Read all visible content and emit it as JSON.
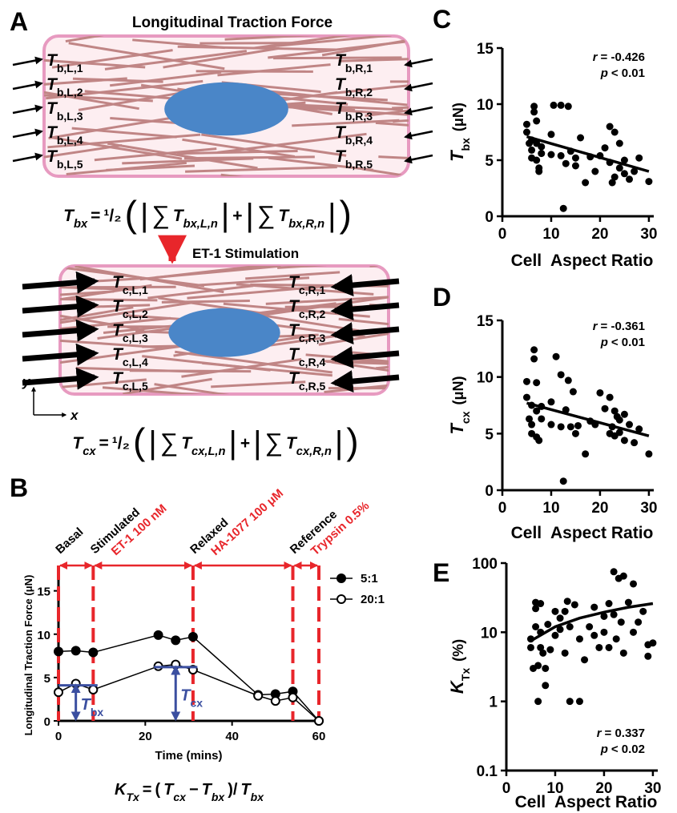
{
  "diagram": {
    "panel": "A",
    "title": "Longitudinal Traction Force",
    "basal_cell": {
      "left_labels": [
        {
          "symbol": "T",
          "subscript": "b,L,1"
        },
        {
          "symbol": "T",
          "subscript": "b,L,2"
        },
        {
          "symbol": "T",
          "subscript": "b,L,3"
        },
        {
          "symbol": "T",
          "subscript": "b,L,4"
        },
        {
          "symbol": "T",
          "subscript": "b,L,5"
        }
      ],
      "right_labels": [
        {
          "symbol": "T",
          "subscript": "b,R,1"
        },
        {
          "symbol": "T",
          "subscript": "b,R,2"
        },
        {
          "symbol": "T",
          "subscript": "b,R,3"
        },
        {
          "symbol": "T",
          "subscript": "b,R,4"
        },
        {
          "symbol": "T",
          "subscript": "b,R,5"
        }
      ]
    },
    "equation_basal": [
      {
        "text": "T",
        "sub": "bx"
      },
      {
        "text": "="
      },
      {
        "text": "¹/₂"
      },
      {
        "text": "("
      },
      {
        "text": "|"
      },
      {
        "text": "∑"
      },
      {
        "text": "T",
        "sub": "bx,L,n"
      },
      {
        "text": "|"
      },
      {
        "text": "+"
      },
      {
        "text": "|"
      },
      {
        "text": "∑"
      },
      {
        "text": "T",
        "sub": "bx,R,n"
      },
      {
        "text": "|"
      },
      {
        "text": ")"
      }
    ],
    "stimulation": "ET-1 Stimulation",
    "stimulated_cell": {
      "left_labels": [
        {
          "symbol": "T",
          "subscript": "c,L,1"
        },
        {
          "symbol": "T",
          "subscript": "c,L,2"
        },
        {
          "symbol": "T",
          "subscript": "c,L,3"
        },
        {
          "symbol": "T",
          "subscript": "c,L,4"
        },
        {
          "symbol": "T",
          "subscript": "c,L,5"
        }
      ],
      "right_labels": [
        {
          "symbol": "T",
          "subscript": "c,R,1"
        },
        {
          "symbol": "T",
          "subscript": "c,R,2"
        },
        {
          "symbol": "T",
          "subscript": "c,R,3"
        },
        {
          "symbol": "T",
          "subscript": "c,R,4"
        },
        {
          "symbol": "T",
          "subscript": "c,R,5"
        }
      ]
    },
    "axes": {
      "y": "y",
      "x": "x"
    },
    "equation_stimulated": [
      {
        "text": "T",
        "sub": "cx"
      },
      {
        "text": "="
      },
      {
        "text": "¹/₂"
      },
      {
        "text": "("
      },
      {
        "text": "|"
      },
      {
        "text": "∑"
      },
      {
        "text": "T",
        "sub": "cx,L,n"
      },
      {
        "text": "|"
      },
      {
        "text": "+"
      },
      {
        "text": "|"
      },
      {
        "text": "∑"
      },
      {
        "text": "T",
        "sub": "cx,R,n"
      },
      {
        "text": "|"
      },
      {
        "text": ")"
      }
    ]
  },
  "chart_data": [
    {
      "type": "line",
      "panel": "B",
      "xlabel": "Time (mins)",
      "ylabel": "Longitudinal Traction Force (μN)",
      "x": [
        0,
        4,
        8,
        23,
        27,
        31,
        46,
        50,
        54,
        60
      ],
      "series": [
        {
          "name": "5:1",
          "color": "#000000",
          "marker": "filled",
          "values": [
            8,
            8.1,
            7.9,
            9.9,
            9.3,
            9.7,
            3.0,
            3.1,
            3.4,
            0
          ]
        },
        {
          "name": "20:1",
          "color": "#000000",
          "marker": "open",
          "values": [
            3.3,
            4.3,
            3.6,
            6.3,
            6.5,
            5.9,
            2.9,
            2.3,
            2.7,
            0
          ]
        }
      ],
      "xlim": [
        0,
        60
      ],
      "xticks": [
        0,
        20,
        40,
        60
      ],
      "ylim": [
        0,
        17
      ],
      "yticks": [
        0,
        5,
        10,
        15
      ],
      "legend": "upper right",
      "phases": [
        {
          "name": "Basal"
        },
        {
          "name": "Stimulated",
          "treatment": "ET-1 100 nM"
        },
        {
          "name": "Relaxed",
          "treatment": "HA-1077 100 μM"
        },
        {
          "name": "Reference",
          "treatment": "Trypsin 0.5%"
        }
      ],
      "phase_boundaries": [
        0,
        8,
        31,
        54,
        60
      ],
      "phase_color": "#e8262b",
      "annotations": [
        {
          "symbol": "T",
          "subscript": "bx",
          "y": 4.1,
          "x_from": 0,
          "x_to": 9,
          "arrow_x": 4
        },
        {
          "symbol": "T",
          "subscript": "cx",
          "y": 6.2,
          "x_from": 22,
          "x_to": 32,
          "arrow_x": 27
        }
      ],
      "annotation_color": "#3b4fa0",
      "equation": [
        {
          "text": "K",
          "sub": "Tx"
        },
        {
          "text": "="
        },
        {
          "text": "("
        },
        {
          "text": "T",
          "sub": "cx"
        },
        {
          "text": "−"
        },
        {
          "text": "T",
          "sub": "bx"
        },
        {
          "text": ")/"
        },
        {
          "text": "T",
          "sub": "bx"
        }
      ]
    },
    {
      "type": "scatter",
      "panel": "C",
      "xlabel": "Cell  Aspect Ratio",
      "ylabel": {
        "symbol": "T",
        "subscript": "bx",
        "unit": "(μN)"
      },
      "x": [
        5,
        5,
        5.5,
        6,
        6,
        6,
        6.5,
        6.5,
        7,
        7,
        7,
        7.5,
        7.5,
        8,
        8,
        10,
        10,
        10.5,
        12,
        12,
        12.5,
        13,
        13.5,
        14,
        15,
        15,
        16,
        17,
        18,
        19,
        20,
        21,
        22,
        22,
        22.5,
        23,
        23,
        24,
        24,
        25,
        25,
        26,
        27,
        28,
        30
      ],
      "values": [
        8.2,
        7.5,
        6.5,
        6.8,
        5.9,
        5.2,
        9.8,
        9.3,
        8.5,
        6.5,
        5.0,
        4.3,
        4.0,
        5.6,
        6.2,
        7.3,
        5.5,
        9.9,
        9.9,
        5.4,
        0.7,
        4.7,
        9.8,
        5.8,
        4.5,
        5.2,
        7.0,
        3.0,
        5.3,
        4.0,
        5.4,
        6.1,
        4.8,
        8.0,
        3.0,
        3.5,
        7.5,
        6.5,
        4.3,
        5.0,
        3.8,
        3.3,
        4.0,
        5.2,
        3.1
      ],
      "color": "#000000",
      "fit": {
        "x": [
          5,
          30
        ],
        "values": [
          7.1,
          4.0
        ]
      },
      "xlim": [
        0,
        31
      ],
      "xticks": [
        0,
        10,
        20,
        30
      ],
      "ylim": [
        0,
        15
      ],
      "yticks": [
        0,
        5,
        10,
        15
      ],
      "log_y": false,
      "stats": [
        {
          "symbol": "r",
          "text": "= -0.426"
        },
        {
          "symbol": "p",
          "text": "< 0.01"
        }
      ]
    },
    {
      "type": "scatter",
      "panel": "D",
      "xlabel": "Cell  Aspect Ratio",
      "ylabel": {
        "symbol": "T",
        "subscript": "cx",
        "unit": "(μN)"
      },
      "x": [
        5,
        5,
        5.5,
        6,
        6,
        6,
        6.5,
        6.5,
        7,
        7,
        7,
        7.5,
        8,
        8,
        10,
        10,
        11,
        12,
        12,
        12.5,
        13,
        13.5,
        14,
        14.5,
        15,
        15.5,
        17,
        18,
        19,
        20,
        21,
        22,
        22,
        22.5,
        23,
        23,
        24,
        24,
        25,
        25,
        26,
        27,
        28,
        30,
        23.5
      ],
      "values": [
        9.6,
        8.2,
        6.3,
        7.5,
        5.8,
        5.0,
        12.4,
        11.6,
        9.5,
        7.0,
        4.7,
        4.4,
        6.3,
        7.4,
        7.8,
        5.8,
        11.8,
        10.2,
        5.6,
        0.8,
        7.1,
        9.7,
        5.6,
        8.7,
        5.0,
        5.7,
        3.2,
        6.1,
        5.8,
        8.6,
        7.2,
        5.0,
        8.2,
        5.6,
        4.8,
        7.0,
        6.2,
        5.1,
        6.7,
        4.4,
        5.8,
        4.2,
        5.4,
        3.2,
        6.5
      ],
      "color": "#000000",
      "fit": {
        "x": [
          5,
          30
        ],
        "values": [
          7.7,
          4.8
        ]
      },
      "xlim": [
        0,
        31
      ],
      "xticks": [
        0,
        10,
        20,
        30
      ],
      "ylim": [
        0,
        15
      ],
      "yticks": [
        0,
        5,
        10,
        15
      ],
      "log_y": false,
      "stats": [
        {
          "symbol": "r",
          "text": "= -0.361"
        },
        {
          "symbol": "p",
          "text": "< 0.01"
        }
      ]
    },
    {
      "type": "scatter",
      "panel": "E",
      "xlabel": "Cell  Aspect Ratio",
      "ylabel": {
        "symbol": "K",
        "subscript": "Tx",
        "unit": "(%)"
      },
      "x": [
        5,
        5,
        5.5,
        6,
        6,
        6,
        6.5,
        6.5,
        7,
        7,
        7,
        7.5,
        8,
        8,
        8.5,
        9,
        10,
        10,
        11,
        11,
        12,
        12,
        12.5,
        13,
        13,
        14,
        15,
        15,
        16,
        17,
        18,
        18,
        19,
        20,
        20,
        21,
        21,
        22,
        22,
        22.5,
        23,
        23.5,
        24,
        24,
        25,
        26,
        26,
        27,
        28,
        29,
        29,
        30
      ],
      "values": [
        8,
        6,
        3,
        22,
        27,
        12,
        3.3,
        1.0,
        26,
        10,
        6,
        5,
        3,
        1.7,
        13,
        5.6,
        9,
        20,
        16,
        11,
        20,
        5,
        28,
        1.0,
        12,
        25,
        1.0,
        8,
        4,
        12,
        9,
        23,
        6,
        10,
        17,
        6,
        26,
        75,
        18,
        8,
        60,
        14,
        65,
        5,
        27,
        10,
        50,
        14,
        20,
        4.5,
        6.6,
        7
      ],
      "color": "#000000",
      "fit": {
        "x": [
          5,
          10,
          15,
          20,
          25,
          30
        ],
        "values": [
          7.5,
          12,
          16,
          19.5,
          23,
          26
        ]
      },
      "xlim": [
        0,
        31
      ],
      "xticks": [
        0,
        10,
        20,
        30
      ],
      "ylim": [
        0.1,
        100
      ],
      "yticks": [
        0.1,
        1,
        10,
        100
      ],
      "log_y": true,
      "stats": [
        {
          "symbol": "r",
          "text": "= 0.337"
        },
        {
          "symbol": "p",
          "text": "< 0.02"
        }
      ]
    }
  ]
}
